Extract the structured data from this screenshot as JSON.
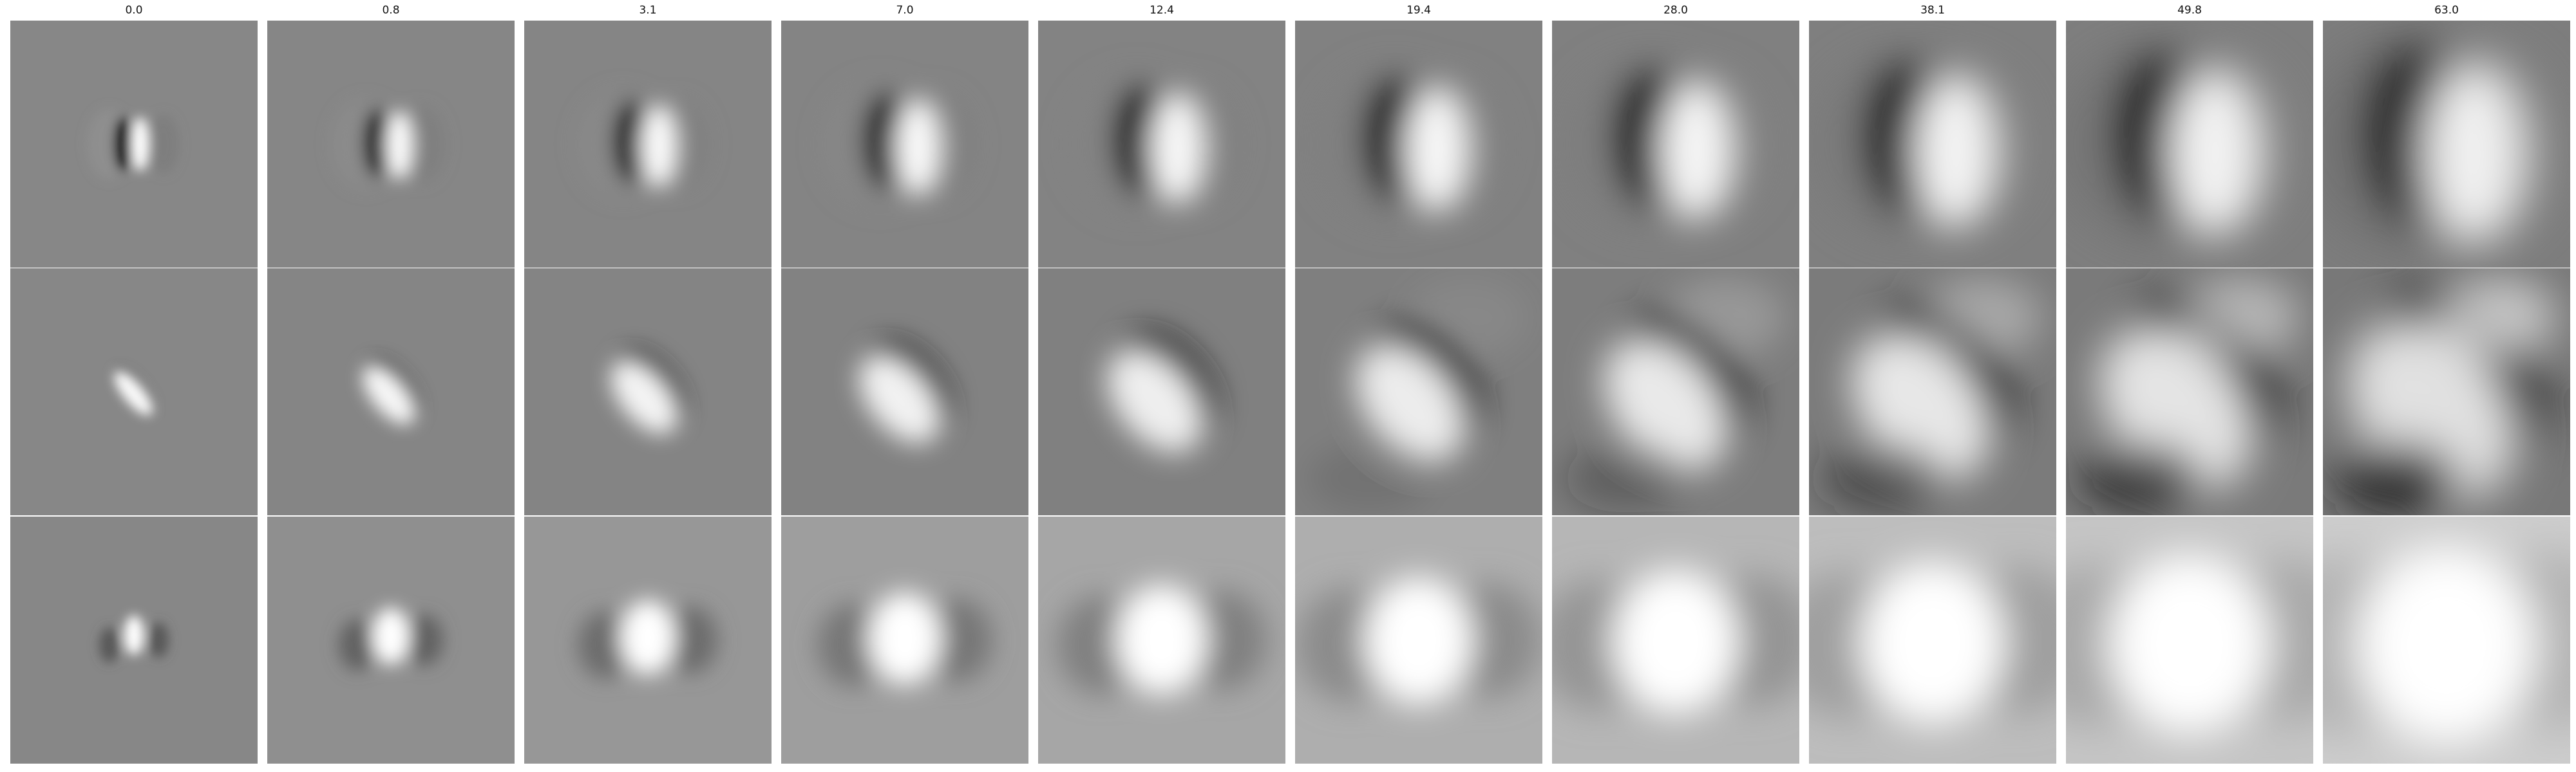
{
  "figure": {
    "columns": [
      {
        "label": "0.0"
      },
      {
        "label": "0.8"
      },
      {
        "label": "3.1"
      },
      {
        "label": "7.0"
      },
      {
        "label": "12.4"
      },
      {
        "label": "19.4"
      },
      {
        "label": "28.0"
      },
      {
        "label": "38.1"
      },
      {
        "label": "49.8"
      },
      {
        "label": "63.0"
      }
    ],
    "rows": [
      {
        "pattern": "vertical-dipole-dark-left-bright-right"
      },
      {
        "pattern": "diagonal-dipole-dark-bottom-left-bright-top-right"
      },
      {
        "pattern": "bright-center-blob-dark-flanks"
      }
    ],
    "colormap": "grayscale"
  }
}
